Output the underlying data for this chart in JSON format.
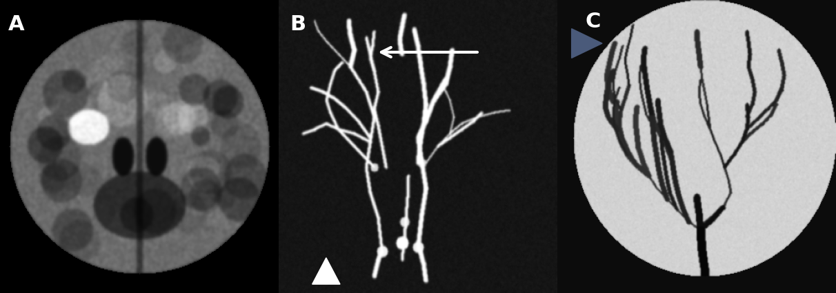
{
  "panel_labels": [
    "A",
    "B",
    "C"
  ],
  "label_color": "#ffffff",
  "label_fontsize": 22,
  "label_fontweight": "bold",
  "panel_A": {
    "bg_color": "#000000",
    "brain_gray": 0.45,
    "bright_spot_color": "#e0e0e0"
  },
  "panel_B": {
    "bg_color": "#1a1a1a",
    "vessel_color": "#cccccc",
    "arrow_color": "#ffffff",
    "arrowhead_color": "#ffffff"
  },
  "panel_C": {
    "bg_color": "#111111",
    "circle_bg": "#d0d0d0",
    "vessel_color": "#222222",
    "arrowhead_color": "#4a5a7a"
  },
  "figsize": [
    12.12,
    4.27
  ],
  "dpi": 100
}
